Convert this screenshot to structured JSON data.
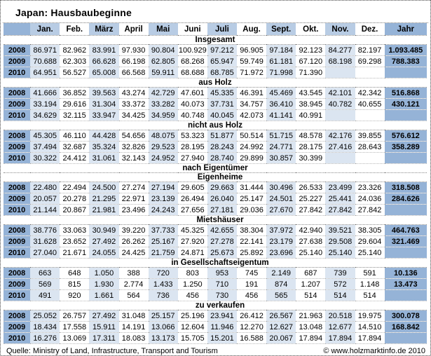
{
  "title": "Japan: Hausbaubeginne",
  "footer": {
    "source": "Quelle: Ministry of Land, Infrastructure, Transport and Tourism",
    "copyright": "© www.holzmarktinfo.de 2010"
  },
  "colors": {
    "header_accent": "#95B3D7",
    "header_light": "#B8CCE4",
    "cell_light": "#DBE5F1"
  },
  "chart_data": {
    "type": "table",
    "title": "Japan: Hausbaubeginne",
    "columns": [
      "Jan.",
      "Feb.",
      "März",
      "April",
      "Mai",
      "Juni",
      "Juli",
      "Aug.",
      "Sept.",
      "Okt.",
      "Nov.",
      "Dez.",
      "Jahr"
    ],
    "sections": [
      {
        "label": "Insgesamt",
        "indent": false,
        "rows": [
          {
            "year": "2008",
            "values": [
              "86.971",
              "82.962",
              "83.991",
              "97.930",
              "90.804",
              "100.929",
              "97.212",
              "96.905",
              "97.184",
              "92.123",
              "84.277",
              "82.197"
            ],
            "jahr": "1.093.485"
          },
          {
            "year": "2009",
            "values": [
              "70.688",
              "62.303",
              "66.628",
              "66.198",
              "62.805",
              "68.268",
              "65.947",
              "59.749",
              "61.181",
              "67.120",
              "68.198",
              "69.298"
            ],
            "jahr": "788.383"
          },
          {
            "year": "2010",
            "values": [
              "64.951",
              "56.527",
              "65.008",
              "66.568",
              "59.911",
              "68.688",
              "68.785",
              "71.972",
              "71.998",
              "71.390",
              "",
              ""
            ],
            "jahr": ""
          }
        ]
      },
      {
        "label": "aus Holz",
        "indent": false,
        "rows": [
          {
            "year": "2008",
            "values": [
              "41.666",
              "36.852",
              "39.563",
              "43.274",
              "42.729",
              "47.601",
              "45.335",
              "46.391",
              "45.469",
              "43.545",
              "42.101",
              "42.342"
            ],
            "jahr": "516.868"
          },
          {
            "year": "2009",
            "values": [
              "33.194",
              "29.616",
              "31.304",
              "33.372",
              "33.282",
              "40.073",
              "37.731",
              "34.757",
              "36.410",
              "38.945",
              "40.782",
              "40.655"
            ],
            "jahr": "430.121"
          },
          {
            "year": "2010",
            "values": [
              "34.629",
              "32.115",
              "33.947",
              "34.425",
              "34.959",
              "40.748",
              "40.045",
              "42.073",
              "41.141",
              "40.991",
              "",
              ""
            ],
            "jahr": ""
          }
        ]
      },
      {
        "label": "nicht aus Holz",
        "indent": false,
        "rows": [
          {
            "year": "2008",
            "values": [
              "45.305",
              "46.110",
              "44.428",
              "54.656",
              "48.075",
              "53.323",
              "51.877",
              "50.514",
              "51.715",
              "48.578",
              "42.176",
              "39.855"
            ],
            "jahr": "576.612"
          },
          {
            "year": "2009",
            "values": [
              "37.494",
              "32.687",
              "35.324",
              "32.826",
              "29.523",
              "28.195",
              "28.243",
              "24.992",
              "24.771",
              "28.175",
              "27.416",
              "28.643"
            ],
            "jahr": "358.289"
          },
          {
            "year": "2010",
            "values": [
              "30.322",
              "24.412",
              "31.061",
              "32.143",
              "24.952",
              "27.940",
              "28.740",
              "29.899",
              "30.857",
              "30.399",
              "",
              ""
            ],
            "jahr": ""
          }
        ]
      },
      {
        "label": "nach Eigentümer",
        "indent": false,
        "rows": []
      },
      {
        "label": "Eigenheime",
        "indent": true,
        "rows": [
          {
            "year": "2008",
            "values": [
              "22.480",
              "22.494",
              "24.500",
              "27.274",
              "27.194",
              "29.605",
              "29.663",
              "31.444",
              "30.496",
              "26.533",
              "23.499",
              "23.326"
            ],
            "jahr": "318.508"
          },
          {
            "year": "2009",
            "values": [
              "20.057",
              "20.278",
              "21.295",
              "22.971",
              "23.139",
              "26.494",
              "26.040",
              "25.147",
              "24.501",
              "25.227",
              "25.441",
              "24.036"
            ],
            "jahr": "284.626"
          },
          {
            "year": "2010",
            "values": [
              "21.144",
              "20.867",
              "21.981",
              "23.496",
              "24.243",
              "27.656",
              "27.181",
              "29.036",
              "27.670",
              "27.842",
              "27.842",
              "27.842"
            ],
            "jahr": ""
          }
        ]
      },
      {
        "label": "Mietshäuser",
        "indent": true,
        "rows": [
          {
            "year": "2008",
            "values": [
              "38.776",
              "33.063",
              "30.949",
              "39.220",
              "37.733",
              "45.325",
              "42.655",
              "38.304",
              "37.972",
              "42.940",
              "39.521",
              "38.305"
            ],
            "jahr": "464.763"
          },
          {
            "year": "2009",
            "values": [
              "31.628",
              "23.652",
              "27.492",
              "26.262",
              "25.167",
              "27.920",
              "27.278",
              "22.141",
              "23.179",
              "27.638",
              "29.508",
              "29.604"
            ],
            "jahr": "321.469"
          },
          {
            "year": "2010",
            "values": [
              "27.040",
              "21.671",
              "24.055",
              "24.425",
              "21.759",
              "24.871",
              "25.673",
              "25.892",
              "23.696",
              "25.140",
              "25.140",
              "25.140"
            ],
            "jahr": ""
          }
        ]
      },
      {
        "label": "in Gesellschaftseigentum",
        "indent": true,
        "rows": [
          {
            "year": "2008",
            "values": [
              "663",
              "648",
              "1.050",
              "388",
              "720",
              "803",
              "953",
              "745",
              "2.149",
              "687",
              "739",
              "591"
            ],
            "jahr": "10.136"
          },
          {
            "year": "2009",
            "values": [
              "569",
              "815",
              "1.930",
              "2.774",
              "1.433",
              "1.250",
              "710",
              "191",
              "874",
              "1.207",
              "572",
              "1.148"
            ],
            "jahr": "13.473"
          },
          {
            "year": "2010",
            "values": [
              "491",
              "920",
              "1.661",
              "564",
              "736",
              "456",
              "730",
              "456",
              "565",
              "514",
              "514",
              "514"
            ],
            "jahr": ""
          }
        ]
      },
      {
        "label": "zu verkaufen",
        "indent": true,
        "rows": [
          {
            "year": "2008",
            "values": [
              "25.052",
              "26.757",
              "27.492",
              "31.048",
              "25.157",
              "25.196",
              "23.941",
              "26.412",
              "26.567",
              "21.963",
              "20.518",
              "19.975"
            ],
            "jahr": "300.078"
          },
          {
            "year": "2009",
            "values": [
              "18.434",
              "17.558",
              "15.911",
              "14.191",
              "13.066",
              "12.604",
              "11.946",
              "12.270",
              "12.627",
              "13.048",
              "12.677",
              "14.510"
            ],
            "jahr": "168.842"
          },
          {
            "year": "2010",
            "values": [
              "16.276",
              "13.069",
              "17.311",
              "18.083",
              "13.173",
              "15.705",
              "15.201",
              "16.588",
              "20.067",
              "17.894",
              "17.894",
              "17.894"
            ],
            "jahr": ""
          }
        ]
      }
    ]
  }
}
